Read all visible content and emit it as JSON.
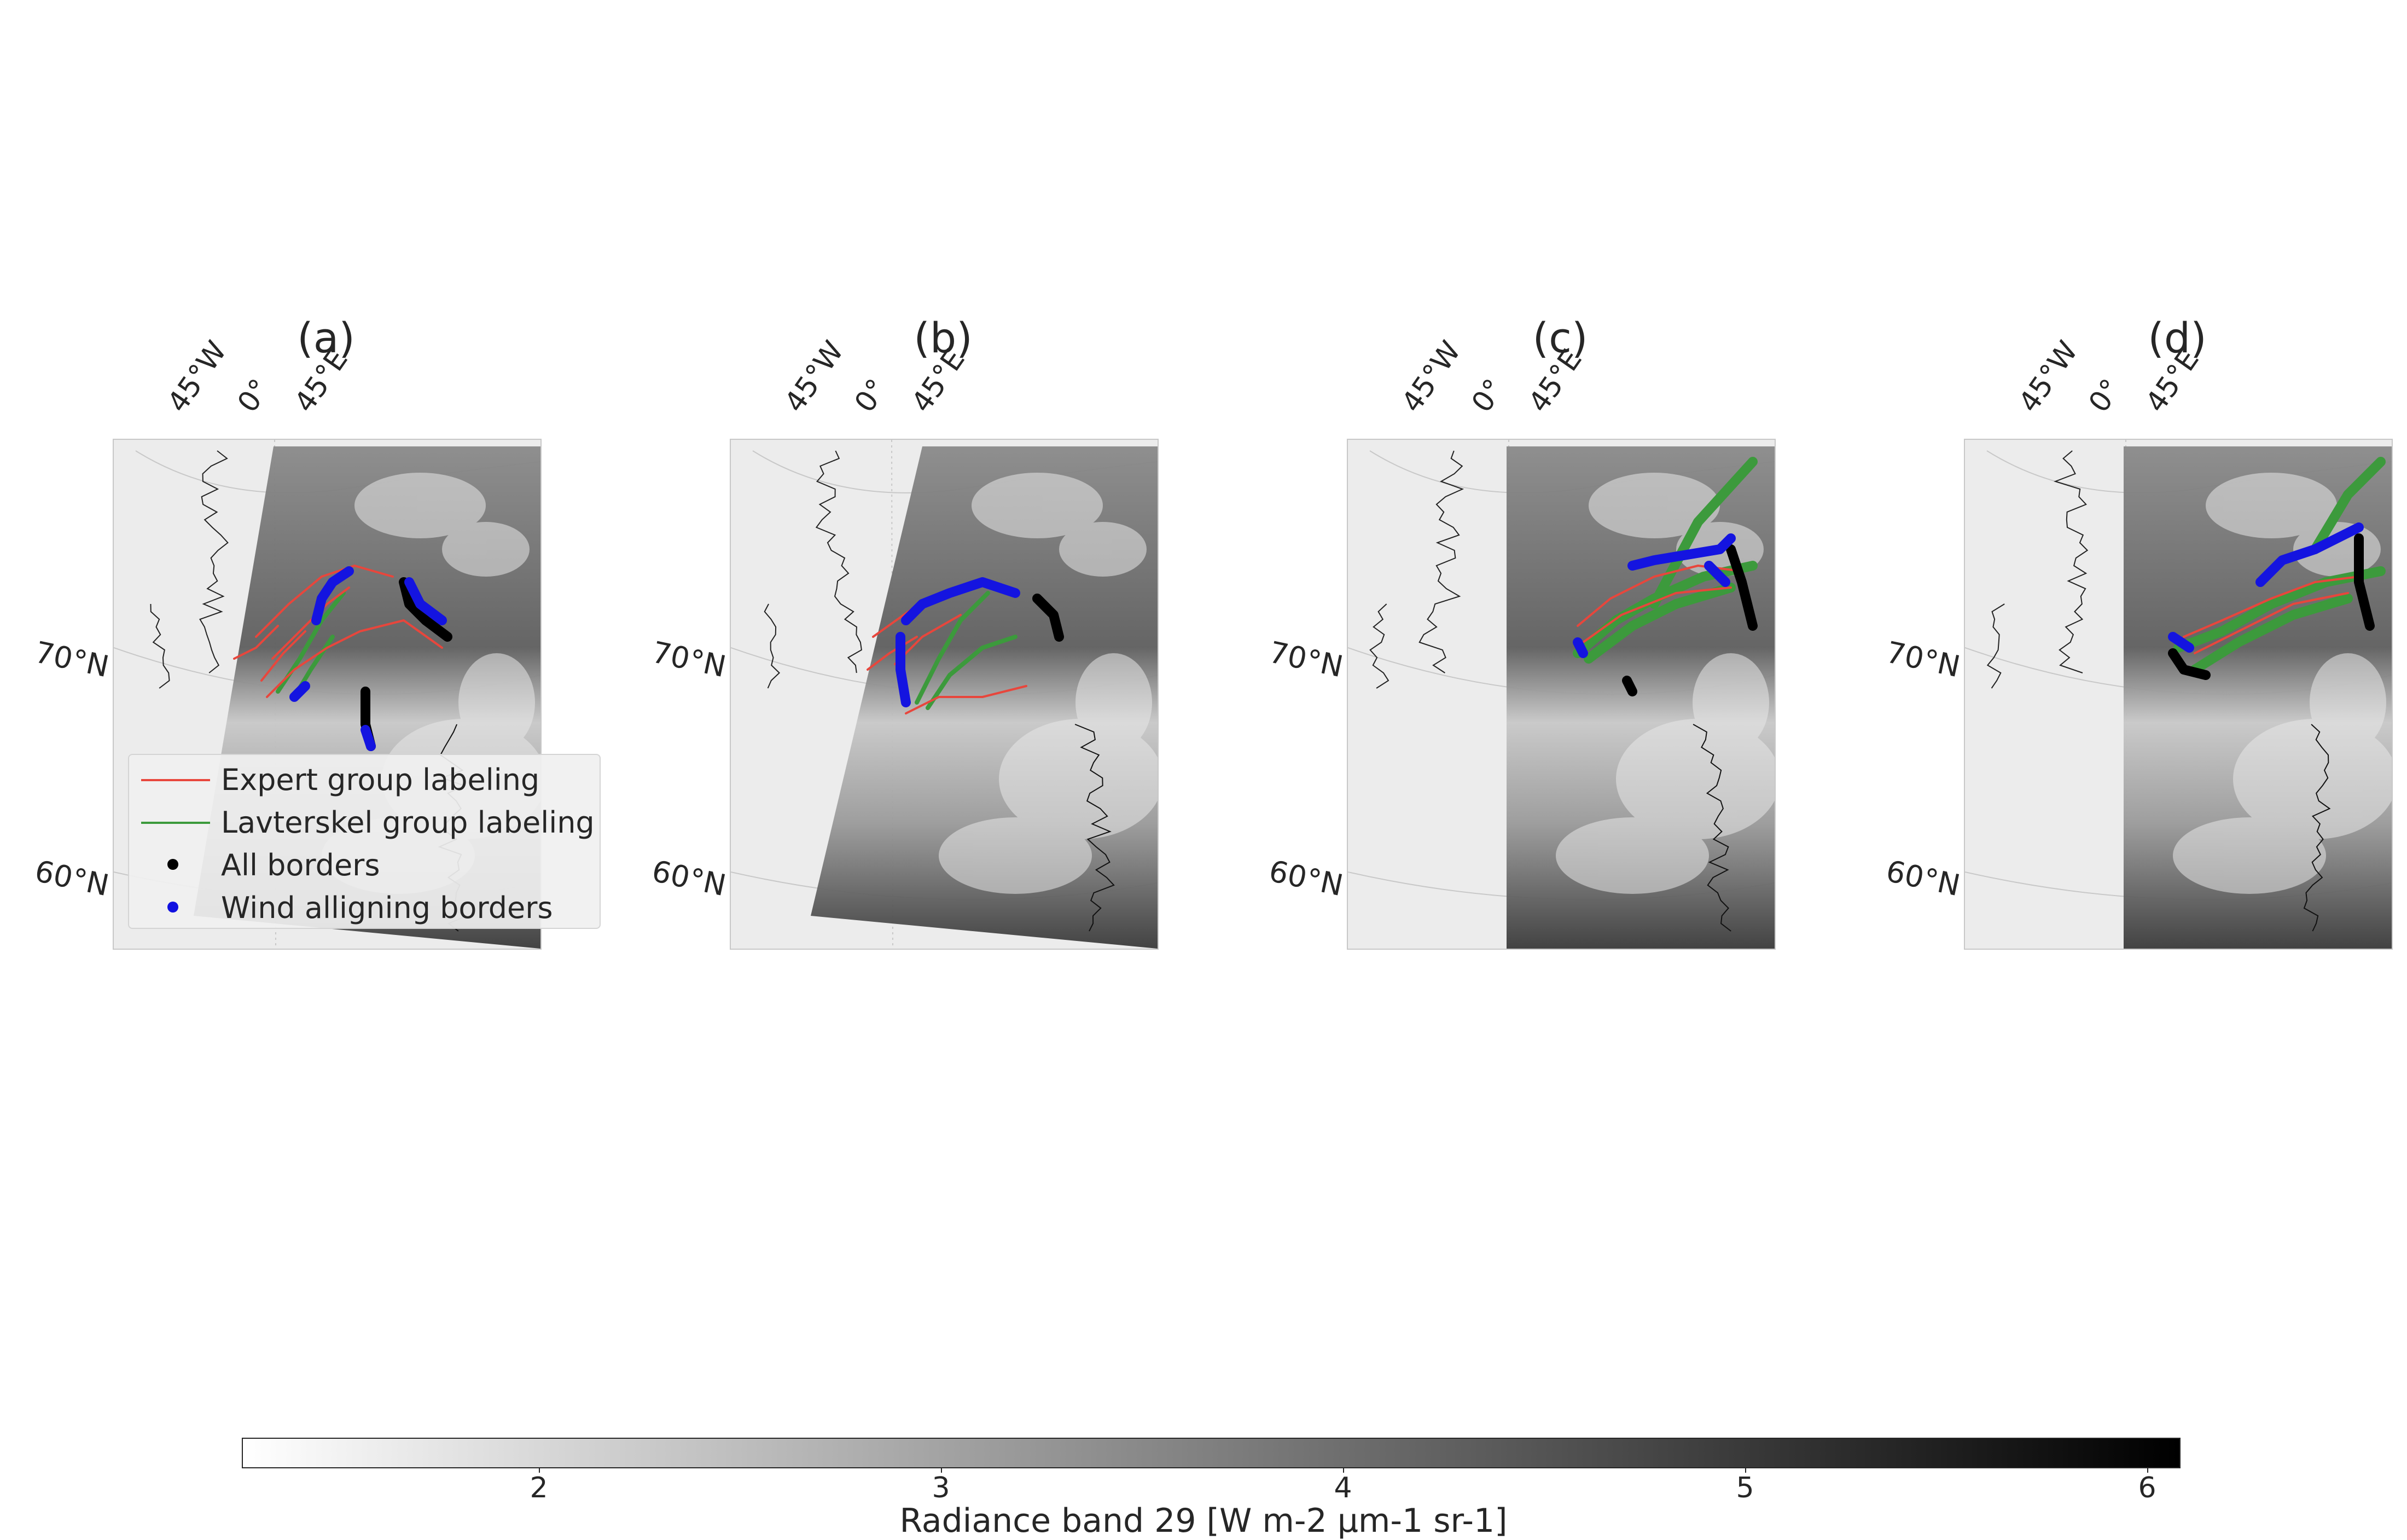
{
  "panels": [
    {
      "title": "(a)",
      "lon_labels": [
        "45°W",
        "0°",
        "45°E"
      ],
      "lat_labels": [
        "70°N",
        "60°N"
      ]
    },
    {
      "title": "(b)",
      "lon_labels": [
        "45°W",
        "0°",
        "45°E"
      ],
      "lat_labels": [
        "70°N",
        "60°N"
      ]
    },
    {
      "title": "(c)",
      "lon_labels": [
        "45°W",
        "0°",
        "45°E"
      ],
      "lat_labels": [
        "70°N",
        "60°N"
      ]
    },
    {
      "title": "(d)",
      "lon_labels": [
        "45°W",
        "0°",
        "45°E"
      ],
      "lat_labels": [
        "70°N",
        "60°N"
      ]
    }
  ],
  "legend": {
    "items": [
      {
        "label": "Expert group labeling",
        "kind": "line",
        "color": "#e8463c"
      },
      {
        "label": "Lavterskel group labeling",
        "kind": "line",
        "color": "#3c9a3c"
      },
      {
        "label": "All borders",
        "kind": "dot",
        "color": "#000000"
      },
      {
        "label": "Wind alligning borders",
        "kind": "dot",
        "color": "#1010e0"
      }
    ]
  },
  "colorbar": {
    "label": "Radiance band 29 [W m-2 µm-1 sr-1]",
    "ticks": [
      "2",
      "3",
      "4",
      "5",
      "6"
    ],
    "colormap": "grayscale (white to black)"
  }
}
